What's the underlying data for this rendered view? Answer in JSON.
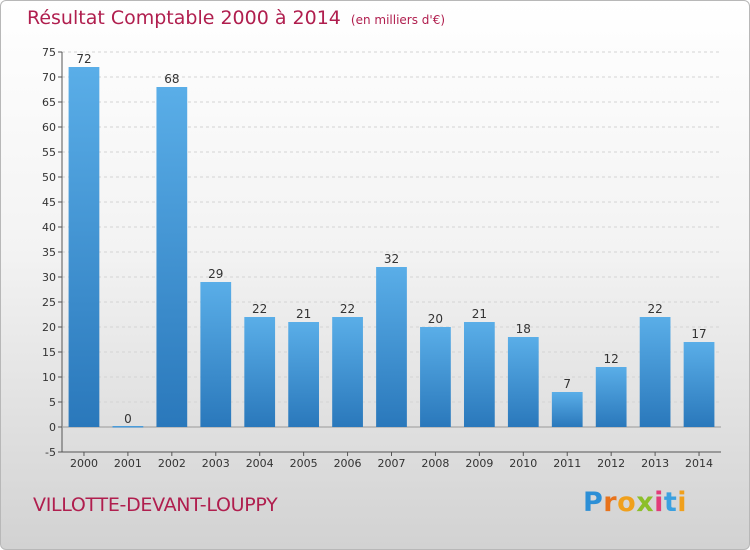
{
  "header": {
    "title": "Résultat Comptable 2000 à 2014",
    "unit": "(en milliers d'€)"
  },
  "footer": {
    "town": "VILLOTTE-DEVANT-LOUPPY",
    "logo": "Proxiti"
  },
  "colors": {
    "title": "#b01e4e",
    "bar_top": "#5aaee8",
    "bar_bottom": "#2a78bb",
    "gridline": "#d4d4d4"
  },
  "chart_data": {
    "type": "bar",
    "title": "Résultat Comptable 2000 à 2014",
    "subtitle": "(en milliers d'€)",
    "xlabel": "",
    "ylabel": "",
    "categories": [
      "2000",
      "2001",
      "2002",
      "2003",
      "2004",
      "2005",
      "2006",
      "2007",
      "2008",
      "2009",
      "2010",
      "2011",
      "2012",
      "2013",
      "2014"
    ],
    "values": [
      72,
      0,
      68,
      29,
      22,
      21,
      22,
      32,
      20,
      21,
      18,
      7,
      12,
      22,
      17
    ],
    "ylim": [
      -5,
      75
    ],
    "yticks": [
      -5,
      0,
      5,
      10,
      15,
      20,
      25,
      30,
      35,
      40,
      45,
      50,
      55,
      60,
      65,
      70,
      75
    ],
    "grid": true,
    "legend": "none"
  }
}
